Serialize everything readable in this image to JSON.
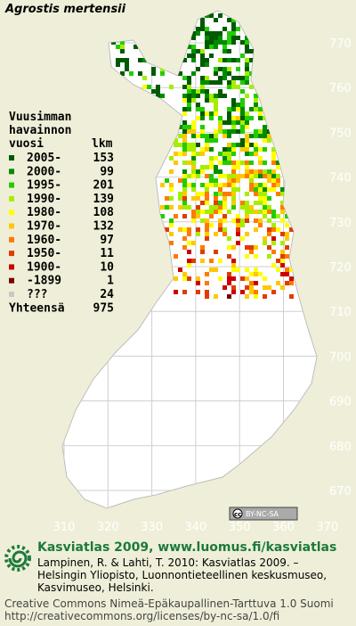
{
  "map": {
    "title": "Agrostis mertensii",
    "legend_heading": [
      "Vuusimman",
      "havainnon",
      "vuosi"
    ],
    "count_heading": "lkm",
    "legend": [
      {
        "label": "2005-",
        "count": 153,
        "color": "#005a00"
      },
      {
        "label": "2000-",
        "count": 99,
        "color": "#008c00"
      },
      {
        "label": "1995-",
        "count": 201,
        "color": "#22cc00"
      },
      {
        "label": "1990-",
        "count": 139,
        "color": "#a6ee00"
      },
      {
        "label": "1980-",
        "count": 108,
        "color": "#ffff00"
      },
      {
        "label": "1970-",
        "count": 132,
        "color": "#ffc800"
      },
      {
        "label": "1960-",
        "count": 97,
        "color": "#ff7a00"
      },
      {
        "label": "1950-",
        "count": 11,
        "color": "#e03c00"
      },
      {
        "label": "1900-",
        "count": 10,
        "color": "#cc0000"
      },
      {
        "label": "-1899",
        "count": 1,
        "color": "#7a0000"
      },
      {
        "label": "???",
        "count": 24,
        "color": "#c8c8c8"
      }
    ],
    "total_label": "Yhteensä",
    "total": 975,
    "yticks": [
      770,
      760,
      750,
      740,
      730,
      720,
      710,
      700,
      690,
      680,
      670
    ],
    "xticks": [
      310,
      320,
      330,
      340,
      350,
      360,
      370
    ]
  },
  "footer": {
    "badge": "BY-NC-SA",
    "site": "Kasviatlas 2009, www.luomus.fi/kasviatlas",
    "citation": [
      "Lampinen, R. & Lahti, T. 2010: Kasviatlas 2009. –",
      "Helsingin Yliopisto, Luonnontieteellinen keskusmuseo,",
      "Kasvimuseo, Helsinki."
    ],
    "license": [
      "Creative Commons Nimeä-Epäkaupallinen-Tarttuva 1.0 Suomi",
      "http://creativecommons.org/licenses/by-nc-sa/1.0/fi"
    ]
  }
}
